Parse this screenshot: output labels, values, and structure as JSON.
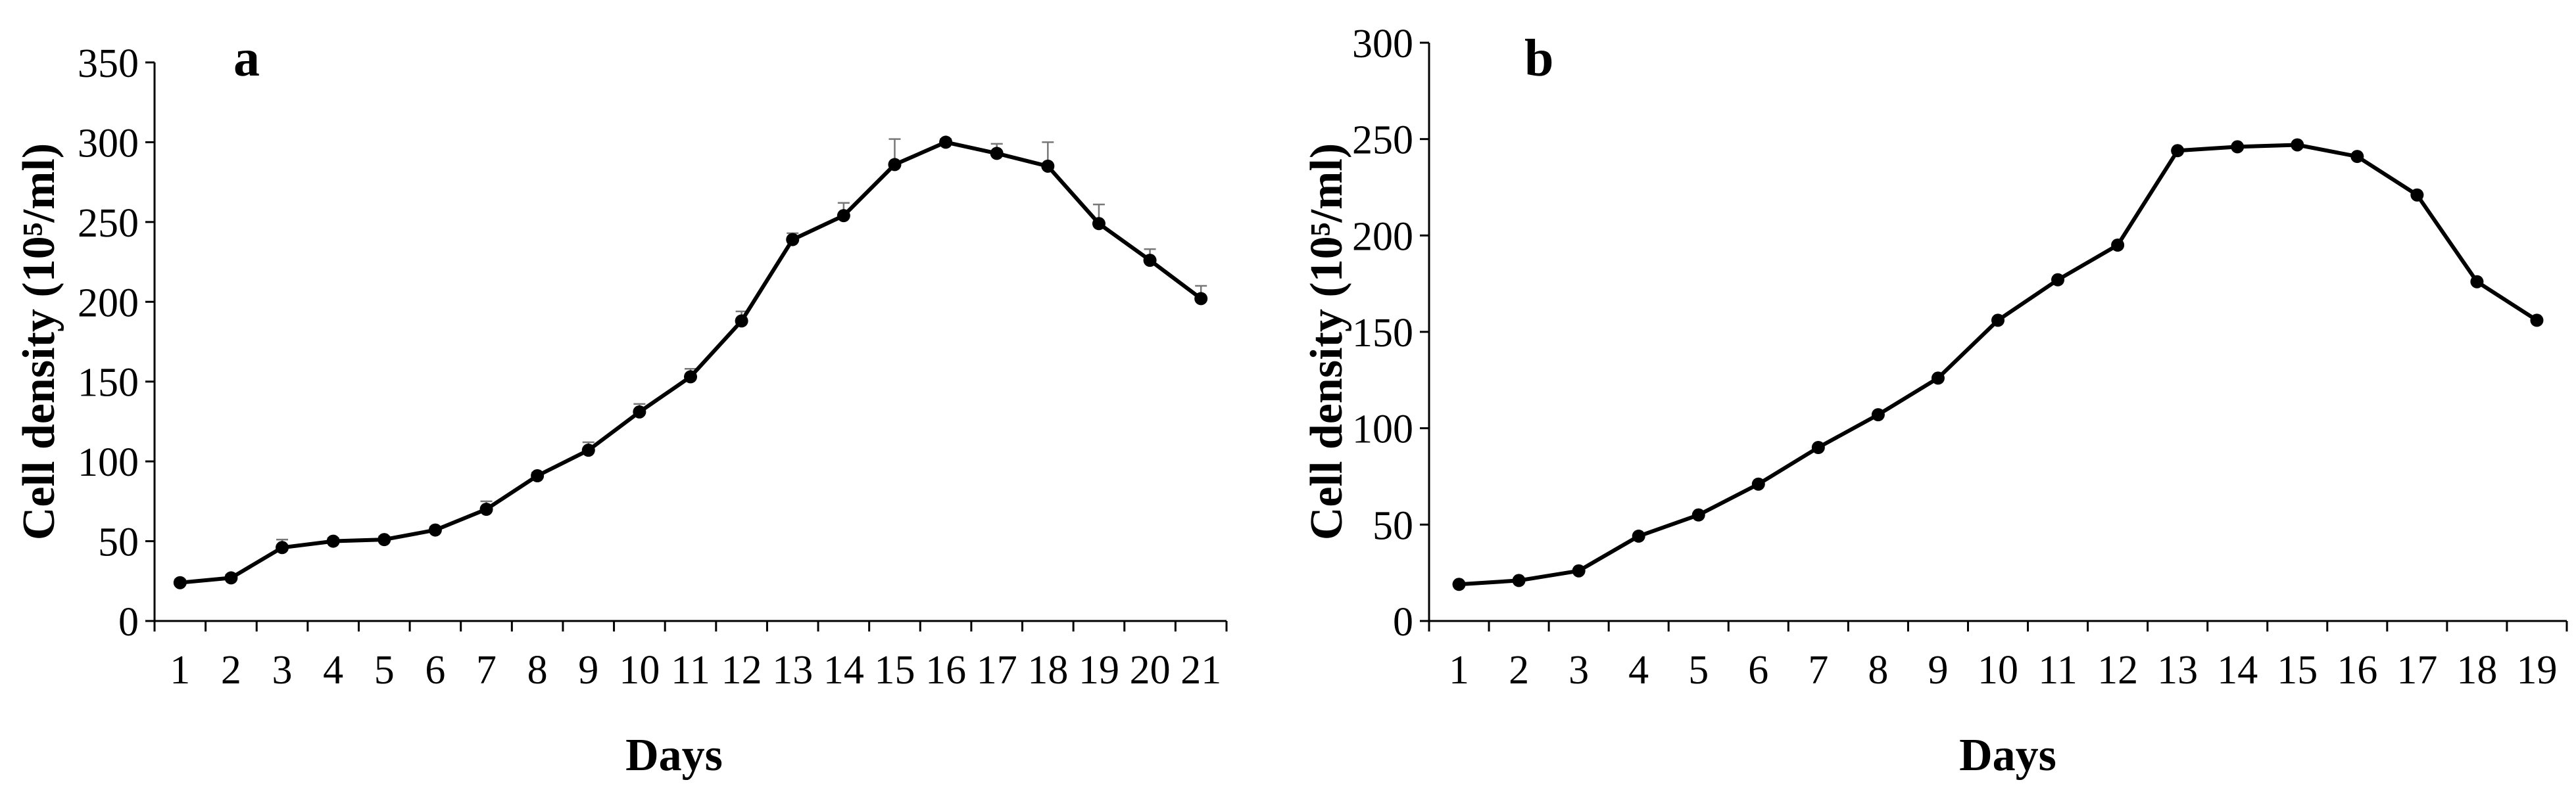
{
  "chart_data": [
    {
      "type": "line",
      "panel_label": "a",
      "xlabel": "Days",
      "ylabel": "Cell density (10⁵/ml)",
      "ylim": [
        0,
        350
      ],
      "yticks": [
        0,
        50,
        100,
        150,
        200,
        250,
        300,
        350
      ],
      "x": [
        1,
        2,
        3,
        4,
        5,
        6,
        7,
        8,
        9,
        10,
        11,
        12,
        13,
        14,
        15,
        16,
        17,
        18,
        19,
        20,
        21
      ],
      "series": [
        {
          "values": [
            24,
            27,
            46,
            50,
            51,
            57,
            70,
            91,
            107,
            131,
            153,
            188,
            239,
            254,
            286,
            300,
            293,
            285,
            249,
            226,
            202
          ],
          "error": [
            2,
            2,
            5,
            2,
            2,
            2,
            5,
            2,
            5,
            5,
            5,
            6,
            4,
            8,
            16,
            2,
            6,
            15,
            12,
            7,
            8
          ]
        }
      ],
      "grid": false
    },
    {
      "type": "line",
      "panel_label": "b",
      "xlabel": "Days",
      "ylabel": "Cell density (10⁵/ml)",
      "ylim": [
        0,
        300
      ],
      "yticks": [
        0,
        50,
        100,
        150,
        200,
        250,
        300
      ],
      "x": [
        1,
        2,
        3,
        4,
        5,
        6,
        7,
        8,
        9,
        10,
        11,
        12,
        13,
        14,
        15,
        16,
        17,
        18,
        19
      ],
      "series": [
        {
          "values": [
            19,
            21,
            26,
            44,
            55,
            71,
            90,
            107,
            126,
            156,
            177,
            195,
            244,
            246,
            247,
            241,
            221,
            176,
            156
          ]
        }
      ],
      "grid": false
    }
  ]
}
